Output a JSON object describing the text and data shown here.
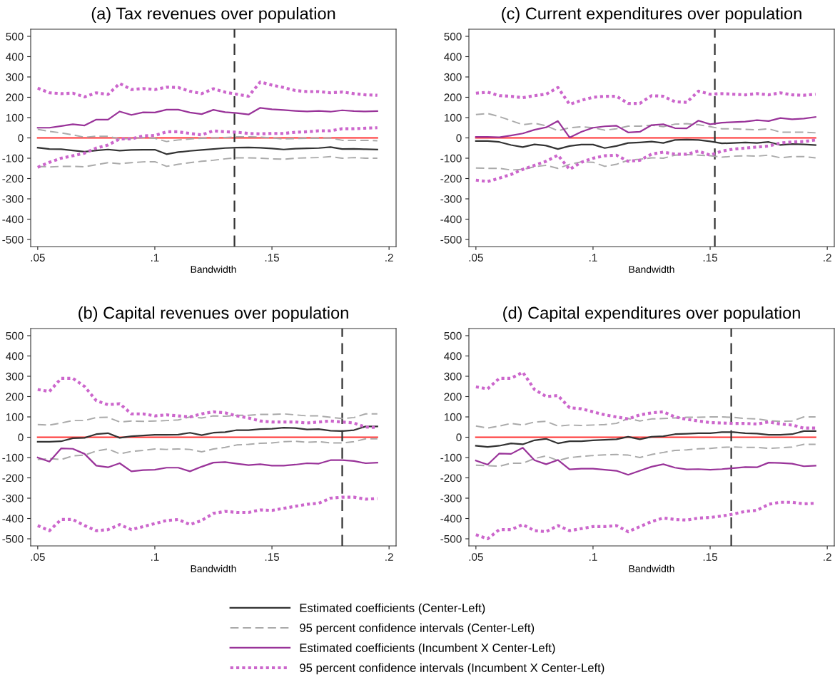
{
  "chart_data": [
    {
      "type": "line",
      "title": "(a) Tax revenues over population",
      "xlabel": "Bandwidth",
      "legend": "bottom",
      "grid": false,
      "x": [
        0.05,
        0.055,
        0.06,
        0.065,
        0.07,
        0.075,
        0.08,
        0.085,
        0.09,
        0.095,
        0.1,
        0.105,
        0.11,
        0.115,
        0.12,
        0.125,
        0.13,
        0.135,
        0.14,
        0.145,
        0.15,
        0.155,
        0.16,
        0.165,
        0.17,
        0.175,
        0.18,
        0.185,
        0.19,
        0.195
      ],
      "xlim": [
        0.047,
        0.203
      ],
      "xticks": [
        {
          "value": 0.05,
          "label": ".05"
        },
        {
          "value": 0.1,
          "label": ".1"
        },
        {
          "value": 0.15,
          "label": ".15"
        },
        {
          "value": 0.2,
          "label": ".2"
        }
      ],
      "ylim": [
        -535,
        535
      ],
      "yticks": [
        -500,
        -400,
        -300,
        -200,
        -100,
        0,
        100,
        200,
        300,
        400,
        500
      ],
      "ref_lines": [
        {
          "axis": "y",
          "value": 0,
          "color": "#ff3333",
          "line_style": "solid"
        },
        {
          "axis": "x",
          "value": 0.134,
          "color": "#333333",
          "line_style": "dashed"
        }
      ],
      "series": [
        {
          "name": "Estimated coefficients (Center-Left)",
          "color": "#333333",
          "line_style": "solid",
          "values": [
            -48,
            -55,
            -56,
            -62,
            -68,
            -62,
            -57,
            -63,
            -59,
            -58,
            -58,
            -80,
            -70,
            -64,
            -59,
            -55,
            -50,
            -48,
            -47,
            -49,
            -52,
            -57,
            -53,
            -51,
            -50,
            -45,
            -55,
            -54,
            -56,
            -57
          ]
        },
        {
          "name": "95 percent confidence intervals (Center-Left)",
          "color": "#aaaaaa",
          "line_style": "dashed",
          "values": [
            42,
            32,
            25,
            15,
            3,
            8,
            8,
            -5,
            -3,
            2,
            -2,
            -18,
            -10,
            -5,
            -2,
            0,
            2,
            5,
            5,
            4,
            0,
            -5,
            -3,
            -2,
            -2,
            0,
            -12,
            -12,
            -12,
            -14
          ]
        },
        {
          "color": "#aaaaaa",
          "line_style": "dashed",
          "values": [
            -140,
            -143,
            -140,
            -140,
            -142,
            -132,
            -122,
            -127,
            -122,
            -118,
            -117,
            -140,
            -130,
            -122,
            -115,
            -110,
            -103,
            -98,
            -98,
            -100,
            -103,
            -105,
            -100,
            -98,
            -97,
            -92,
            -100,
            -97,
            -100,
            -100
          ]
        },
        {
          "name": "Estimated coefficients (Incumbent X Center-Left)",
          "color": "#993399",
          "line_style": "solid",
          "values": [
            50,
            50,
            58,
            67,
            61,
            90,
            90,
            130,
            113,
            126,
            125,
            139,
            139,
            125,
            117,
            138,
            127,
            122,
            115,
            148,
            141,
            137,
            133,
            130,
            133,
            129,
            136,
            132,
            130,
            132
          ]
        },
        {
          "name": "95 percent confidence intervals (Incumbent X Center-Left)",
          "color": "#cc66cc",
          "line_style": "dotted",
          "values": [
            245,
            222,
            218,
            220,
            202,
            222,
            214,
            268,
            238,
            243,
            238,
            250,
            248,
            230,
            218,
            242,
            225,
            215,
            205,
            275,
            260,
            248,
            233,
            228,
            228,
            222,
            226,
            218,
            212,
            210
          ]
        },
        {
          "color": "#cc66cc",
          "line_style": "dotted",
          "values": [
            -145,
            -120,
            -100,
            -88,
            -75,
            -50,
            -35,
            -5,
            -5,
            10,
            12,
            30,
            30,
            22,
            15,
            35,
            30,
            28,
            22,
            20,
            22,
            22,
            28,
            30,
            35,
            35,
            45,
            45,
            48,
            50
          ]
        }
      ]
    },
    {
      "type": "line",
      "title": "(c) Current expenditures over population",
      "xlabel": "Bandwidth",
      "legend": "bottom",
      "grid": false,
      "x": [
        0.05,
        0.055,
        0.06,
        0.065,
        0.07,
        0.075,
        0.08,
        0.085,
        0.09,
        0.095,
        0.1,
        0.105,
        0.11,
        0.115,
        0.12,
        0.125,
        0.13,
        0.135,
        0.14,
        0.145,
        0.15,
        0.155,
        0.16,
        0.165,
        0.17,
        0.175,
        0.18,
        0.185,
        0.19,
        0.195
      ],
      "xlim": [
        0.047,
        0.203
      ],
      "xticks": [
        {
          "value": 0.05,
          "label": ".05"
        },
        {
          "value": 0.1,
          "label": ".1"
        },
        {
          "value": 0.15,
          "label": ".15"
        },
        {
          "value": 0.2,
          "label": ".2"
        }
      ],
      "ylim": [
        -535,
        535
      ],
      "yticks": [
        -500,
        -400,
        -300,
        -200,
        -100,
        0,
        100,
        200,
        300,
        400,
        500
      ],
      "ref_lines": [
        {
          "axis": "y",
          "value": 0,
          "color": "#ff3333",
          "line_style": "solid"
        },
        {
          "axis": "x",
          "value": 0.152,
          "color": "#333333",
          "line_style": "dashed"
        }
      ],
      "series": [
        {
          "name": "Estimated coefficients (Center-Left)",
          "color": "#333333",
          "line_style": "solid",
          "values": [
            -15,
            -15,
            -20,
            -35,
            -45,
            -32,
            -38,
            -55,
            -40,
            -33,
            -33,
            -50,
            -40,
            -25,
            -22,
            -18,
            -25,
            -10,
            -8,
            -10,
            -17,
            -27,
            -25,
            -22,
            -25,
            -20,
            -35,
            -30,
            -32,
            -35
          ]
        },
        {
          "name": "95 percent confidence intervals (Center-Left)",
          "color": "#aaaaaa",
          "line_style": "dashed",
          "values": [
            115,
            120,
            105,
            85,
            65,
            72,
            60,
            35,
            50,
            55,
            50,
            38,
            45,
            58,
            58,
            62,
            55,
            68,
            70,
            65,
            55,
            45,
            45,
            42,
            40,
            45,
            28,
            28,
            28,
            25
          ]
        },
        {
          "color": "#aaaaaa",
          "line_style": "dashed",
          "values": [
            -148,
            -150,
            -150,
            -158,
            -155,
            -142,
            -135,
            -150,
            -130,
            -118,
            -120,
            -140,
            -130,
            -110,
            -105,
            -98,
            -100,
            -85,
            -82,
            -85,
            -88,
            -95,
            -90,
            -88,
            -90,
            -85,
            -98,
            -92,
            -92,
            -98
          ]
        },
        {
          "name": "Estimated coefficients (Incumbent X Center-Left)",
          "color": "#993399",
          "line_style": "solid",
          "values": [
            5,
            5,
            3,
            12,
            22,
            40,
            52,
            83,
            2,
            30,
            50,
            57,
            60,
            27,
            30,
            63,
            67,
            48,
            47,
            85,
            67,
            75,
            78,
            80,
            87,
            83,
            98,
            92,
            95,
            103
          ]
        },
        {
          "name": "95 percent confidence intervals (Incumbent X Center-Left)",
          "color": "#cc66cc",
          "line_style": "dotted",
          "values": [
            220,
            225,
            208,
            205,
            198,
            208,
            215,
            248,
            165,
            185,
            200,
            205,
            205,
            170,
            170,
            208,
            205,
            178,
            175,
            230,
            215,
            218,
            215,
            212,
            218,
            212,
            222,
            212,
            210,
            215
          ]
        },
        {
          "color": "#cc66cc",
          "line_style": "dotted",
          "values": [
            -208,
            -215,
            -198,
            -180,
            -155,
            -135,
            -115,
            -85,
            -155,
            -120,
            -100,
            -88,
            -85,
            -115,
            -110,
            -80,
            -70,
            -80,
            -80,
            -65,
            -85,
            -65,
            -55,
            -50,
            -45,
            -40,
            -25,
            -20,
            -18,
            -10
          ]
        }
      ]
    },
    {
      "type": "line",
      "title": "(b) Capital revenues over population",
      "xlabel": "Bandwidth",
      "legend": "bottom",
      "grid": false,
      "x": [
        0.05,
        0.055,
        0.06,
        0.065,
        0.07,
        0.075,
        0.08,
        0.085,
        0.09,
        0.095,
        0.1,
        0.105,
        0.11,
        0.115,
        0.12,
        0.125,
        0.13,
        0.135,
        0.14,
        0.145,
        0.15,
        0.155,
        0.16,
        0.165,
        0.17,
        0.175,
        0.18,
        0.185,
        0.19,
        0.195
      ],
      "xlim": [
        0.047,
        0.203
      ],
      "xticks": [
        {
          "value": 0.05,
          "label": ".05"
        },
        {
          "value": 0.1,
          "label": ".1"
        },
        {
          "value": 0.15,
          "label": ".15"
        },
        {
          "value": 0.2,
          "label": ".2"
        }
      ],
      "ylim": [
        -535,
        535
      ],
      "yticks": [
        -500,
        -400,
        -300,
        -200,
        -100,
        0,
        100,
        200,
        300,
        400,
        500
      ],
      "ref_lines": [
        {
          "axis": "y",
          "value": 0,
          "color": "#ff3333",
          "line_style": "solid"
        },
        {
          "axis": "x",
          "value": 0.18,
          "color": "#333333",
          "line_style": "dashed"
        }
      ],
      "series": [
        {
          "name": "Estimated coefficients (Center-Left)",
          "color": "#333333",
          "line_style": "solid",
          "values": [
            -22,
            -22,
            -20,
            -5,
            -3,
            15,
            20,
            -3,
            5,
            8,
            12,
            12,
            13,
            22,
            10,
            22,
            25,
            35,
            35,
            40,
            42,
            47,
            45,
            38,
            40,
            32,
            30,
            35,
            53,
            53
          ]
        },
        {
          "name": "95 percent confidence intervals (Center-Left)",
          "color": "#aaaaaa",
          "line_style": "dashed",
          "values": [
            62,
            60,
            70,
            82,
            82,
            97,
            98,
            75,
            80,
            78,
            80,
            82,
            85,
            100,
            95,
            105,
            103,
            108,
            108,
            112,
            112,
            115,
            110,
            105,
            105,
            98,
            92,
            97,
            115,
            115
          ]
        },
        {
          "color": "#aaaaaa",
          "line_style": "dashed",
          "values": [
            -110,
            -105,
            -110,
            -92,
            -88,
            -68,
            -58,
            -82,
            -70,
            -65,
            -58,
            -60,
            -58,
            -60,
            -72,
            -58,
            -50,
            -38,
            -35,
            -30,
            -28,
            -22,
            -20,
            -25,
            -22,
            -28,
            -28,
            -22,
            -8,
            -8
          ]
        },
        {
          "name": "Estimated coefficients (Incumbent X Center-Left)",
          "color": "#993399",
          "line_style": "solid",
          "values": [
            -100,
            -120,
            -55,
            -57,
            -82,
            -140,
            -148,
            -128,
            -168,
            -162,
            -160,
            -150,
            -150,
            -168,
            -145,
            -125,
            -122,
            -130,
            -137,
            -133,
            -140,
            -140,
            -135,
            -128,
            -130,
            -113,
            -113,
            -117,
            -128,
            -125
          ]
        },
        {
          "name": "95 percent confidence intervals (Incumbent X Center-Left)",
          "color": "#cc66cc",
          "line_style": "dotted",
          "values": [
            235,
            225,
            290,
            290,
            250,
            180,
            160,
            165,
            115,
            115,
            105,
            110,
            105,
            100,
            115,
            125,
            120,
            105,
            95,
            80,
            75,
            75,
            75,
            70,
            75,
            80,
            75,
            70,
            50,
            48
          ]
        },
        {
          "color": "#cc66cc",
          "line_style": "dotted",
          "values": [
            -435,
            -460,
            -405,
            -405,
            -435,
            -460,
            -455,
            -430,
            -455,
            -440,
            -425,
            -410,
            -405,
            -430,
            -410,
            -375,
            -365,
            -370,
            -370,
            -358,
            -360,
            -350,
            -340,
            -330,
            -325,
            -300,
            -295,
            -295,
            -305,
            -302
          ]
        }
      ]
    },
    {
      "type": "line",
      "title": "(d) Capital expenditures over population",
      "xlabel": "Bandwidth",
      "legend": "bottom",
      "grid": false,
      "x": [
        0.05,
        0.055,
        0.06,
        0.065,
        0.07,
        0.075,
        0.08,
        0.085,
        0.09,
        0.095,
        0.1,
        0.105,
        0.11,
        0.115,
        0.12,
        0.125,
        0.13,
        0.135,
        0.14,
        0.145,
        0.15,
        0.155,
        0.16,
        0.165,
        0.17,
        0.175,
        0.18,
        0.185,
        0.19,
        0.195
      ],
      "xlim": [
        0.047,
        0.203
      ],
      "xticks": [
        {
          "value": 0.05,
          "label": ".05"
        },
        {
          "value": 0.1,
          "label": ".1"
        },
        {
          "value": 0.15,
          "label": ".15"
        },
        {
          "value": 0.2,
          "label": ".2"
        }
      ],
      "ylim": [
        -535,
        535
      ],
      "yticks": [
        -500,
        -400,
        -300,
        -200,
        -100,
        0,
        100,
        200,
        300,
        400,
        500
      ],
      "ref_lines": [
        {
          "axis": "y",
          "value": 0,
          "color": "#ff3333",
          "line_style": "solid"
        },
        {
          "axis": "x",
          "value": 0.159,
          "color": "#333333",
          "line_style": "dashed"
        }
      ],
      "series": [
        {
          "name": "Estimated coefficients (Center-Left)",
          "color": "#333333",
          "line_style": "solid",
          "values": [
            -42,
            -48,
            -42,
            -30,
            -35,
            -15,
            -8,
            -30,
            -20,
            -20,
            -15,
            -13,
            -10,
            2,
            -10,
            2,
            5,
            15,
            17,
            20,
            20,
            25,
            25,
            20,
            18,
            12,
            12,
            15,
            30,
            30
          ]
        },
        {
          "name": "95 percent confidence intervals (Center-Left)",
          "color": "#aaaaaa",
          "line_style": "dashed",
          "values": [
            55,
            45,
            55,
            68,
            60,
            75,
            78,
            55,
            60,
            58,
            60,
            62,
            68,
            92,
            80,
            90,
            92,
            95,
            98,
            98,
            100,
            100,
            98,
            92,
            90,
            82,
            78,
            80,
            100,
            100
          ]
        },
        {
          "color": "#aaaaaa",
          "line_style": "dashed",
          "values": [
            -138,
            -140,
            -143,
            -128,
            -128,
            -105,
            -92,
            -115,
            -100,
            -95,
            -90,
            -87,
            -85,
            -88,
            -100,
            -85,
            -75,
            -65,
            -62,
            -57,
            -55,
            -50,
            -48,
            -50,
            -50,
            -55,
            -52,
            -48,
            -35,
            -35
          ]
        },
        {
          "name": "Estimated coefficients (Incumbent X Center-Left)",
          "color": "#993399",
          "line_style": "solid",
          "values": [
            -115,
            -135,
            -80,
            -82,
            -52,
            -113,
            -133,
            -112,
            -158,
            -155,
            -155,
            -160,
            -165,
            -185,
            -165,
            -145,
            -133,
            -150,
            -158,
            -157,
            -160,
            -157,
            -152,
            -147,
            -148,
            -125,
            -127,
            -130,
            -143,
            -140
          ]
        },
        {
          "name": "95 percent confidence intervals (Incumbent X Center-Left)",
          "color": "#cc66cc",
          "line_style": "dotted",
          "values": [
            248,
            238,
            290,
            290,
            320,
            235,
            200,
            205,
            145,
            140,
            125,
            110,
            100,
            90,
            110,
            120,
            125,
            100,
            88,
            80,
            72,
            70,
            68,
            68,
            65,
            75,
            65,
            60,
            45,
            45
          ]
        },
        {
          "color": "#cc66cc",
          "line_style": "dotted",
          "values": [
            -480,
            -500,
            -455,
            -455,
            -430,
            -460,
            -465,
            -435,
            -460,
            -450,
            -440,
            -440,
            -435,
            -465,
            -440,
            -415,
            -398,
            -405,
            -408,
            -398,
            -395,
            -388,
            -378,
            -365,
            -360,
            -330,
            -320,
            -320,
            -328,
            -325
          ]
        }
      ]
    }
  ]
}
